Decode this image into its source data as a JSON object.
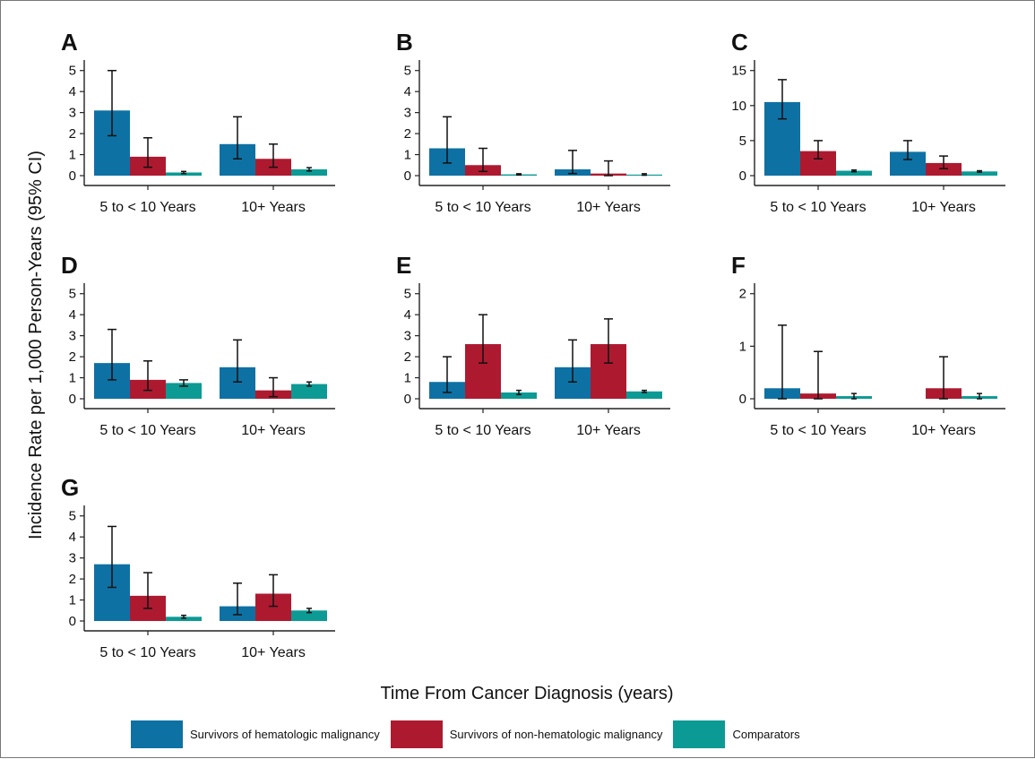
{
  "chart_data": {
    "type": "bar",
    "ylabel": "Incidence Rate per 1,000 Person-Years (95% CI)",
    "xlabel": "Time From Cancer Diagnosis (years)",
    "categories": [
      "5 to < 10 Years",
      "10+ Years"
    ],
    "legend": {
      "position": "bottom",
      "entries": [
        {
          "name": "Survivors of hematologic malignancy",
          "color": "#0e71a4"
        },
        {
          "name": "Survivors of non-hematologic malignancy",
          "color": "#ad1a30"
        },
        {
          "name": "Comparators",
          "color": "#0c9a94"
        }
      ]
    },
    "panels": [
      {
        "label": "A",
        "ylim": [
          0,
          5.5
        ],
        "yticks": [
          0,
          1,
          2,
          3,
          4,
          5
        ],
        "series": [
          {
            "values": [
              3.1,
              1.5
            ],
            "ci_low": [
              1.9,
              0.8
            ],
            "ci_high": [
              5.0,
              2.8
            ]
          },
          {
            "values": [
              0.9,
              0.8
            ],
            "ci_low": [
              0.4,
              0.4
            ],
            "ci_high": [
              1.8,
              1.5
            ]
          },
          {
            "values": [
              0.15,
              0.3
            ],
            "ci_low": [
              0.1,
              0.22
            ],
            "ci_high": [
              0.2,
              0.38
            ]
          }
        ]
      },
      {
        "label": "B",
        "ylim": [
          0,
          5.5
        ],
        "yticks": [
          0,
          1,
          2,
          3,
          4,
          5
        ],
        "series": [
          {
            "values": [
              1.3,
              0.3
            ],
            "ci_low": [
              0.6,
              0.1
            ],
            "ci_high": [
              2.8,
              1.2
            ]
          },
          {
            "values": [
              0.5,
              0.1
            ],
            "ci_low": [
              0.2,
              0.0
            ],
            "ci_high": [
              1.3,
              0.7
            ]
          },
          {
            "values": [
              0.06,
              0.05
            ],
            "ci_low": [
              0.03,
              0.02
            ],
            "ci_high": [
              0.09,
              0.09
            ]
          }
        ]
      },
      {
        "label": "C",
        "ylim": [
          0,
          16.5
        ],
        "yticks": [
          0,
          5,
          10,
          15
        ],
        "series": [
          {
            "values": [
              10.5,
              3.4
            ],
            "ci_low": [
              8.1,
              2.3
            ],
            "ci_high": [
              13.7,
              5.0
            ]
          },
          {
            "values": [
              3.5,
              1.8
            ],
            "ci_low": [
              2.4,
              1.0
            ],
            "ci_high": [
              5.0,
              2.8
            ]
          },
          {
            "values": [
              0.7,
              0.6
            ],
            "ci_low": [
              0.55,
              0.5
            ],
            "ci_high": [
              0.8,
              0.7
            ]
          }
        ]
      },
      {
        "label": "D",
        "ylim": [
          0,
          5.5
        ],
        "yticks": [
          0,
          1,
          2,
          3,
          4,
          5
        ],
        "series": [
          {
            "values": [
              1.7,
              1.5
            ],
            "ci_low": [
              0.9,
              0.8
            ],
            "ci_high": [
              3.3,
              2.8
            ]
          },
          {
            "values": [
              0.9,
              0.4
            ],
            "ci_low": [
              0.4,
              0.1
            ],
            "ci_high": [
              1.8,
              1.0
            ]
          },
          {
            "values": [
              0.75,
              0.7
            ],
            "ci_low": [
              0.6,
              0.6
            ],
            "ci_high": [
              0.9,
              0.8
            ]
          }
        ]
      },
      {
        "label": "E",
        "ylim": [
          0,
          5.5
        ],
        "yticks": [
          0,
          1,
          2,
          3,
          4,
          5
        ],
        "series": [
          {
            "values": [
              0.8,
              1.5
            ],
            "ci_low": [
              0.3,
              0.8
            ],
            "ci_high": [
              2.0,
              2.8
            ]
          },
          {
            "values": [
              2.6,
              2.6
            ],
            "ci_low": [
              1.7,
              1.7
            ],
            "ci_high": [
              4.0,
              3.8
            ]
          },
          {
            "values": [
              0.3,
              0.35
            ],
            "ci_low": [
              0.2,
              0.3
            ],
            "ci_high": [
              0.4,
              0.4
            ]
          }
        ]
      },
      {
        "label": "F",
        "ylim": [
          0,
          2.2
        ],
        "yticks": [
          0,
          1,
          2
        ],
        "series": [
          {
            "values": [
              0.2,
              0.0
            ],
            "ci_low": [
              0.0,
              null
            ],
            "ci_high": [
              1.4,
              null
            ]
          },
          {
            "values": [
              0.1,
              0.2
            ],
            "ci_low": [
              0.0,
              0.0
            ],
            "ci_high": [
              0.9,
              0.8
            ]
          },
          {
            "values": [
              0.05,
              0.05
            ],
            "ci_low": [
              0.0,
              0.0
            ],
            "ci_high": [
              0.1,
              0.1
            ]
          }
        ]
      },
      {
        "label": "G",
        "ylim": [
          0,
          5.5
        ],
        "yticks": [
          0,
          1,
          2,
          3,
          4,
          5
        ],
        "series": [
          {
            "values": [
              2.7,
              0.7
            ],
            "ci_low": [
              1.6,
              0.3
            ],
            "ci_high": [
              4.5,
              1.8
            ]
          },
          {
            "values": [
              1.2,
              1.3
            ],
            "ci_low": [
              0.6,
              0.7
            ],
            "ci_high": [
              2.3,
              2.2
            ]
          },
          {
            "values": [
              0.2,
              0.5
            ],
            "ci_low": [
              0.13,
              0.4
            ],
            "ci_high": [
              0.27,
              0.6
            ]
          }
        ]
      }
    ]
  }
}
